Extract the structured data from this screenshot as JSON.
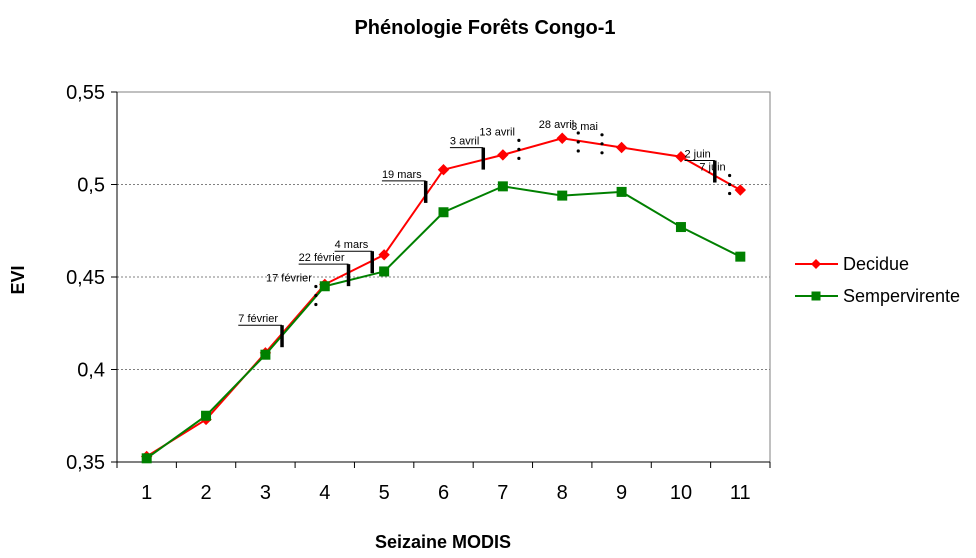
{
  "chart_data": {
    "type": "line",
    "title": "Phénologie Forêts Congo-1",
    "xlabel": "Seizaine MODIS",
    "ylabel": "EVI",
    "x": [
      1,
      2,
      3,
      4,
      5,
      6,
      7,
      8,
      9,
      10,
      11
    ],
    "ylim": [
      0.35,
      0.55
    ],
    "yticks": [
      "0,35",
      "0,4",
      "0,45",
      "0,5",
      "0,55"
    ],
    "ytick_values": [
      0.35,
      0.4,
      0.45,
      0.5,
      0.55
    ],
    "grid": "horizontal dotted",
    "legend_position": "right",
    "series": [
      {
        "name": "Decidue",
        "color": "#ff0000",
        "marker": "diamond",
        "values": [
          0.353,
          0.373,
          0.409,
          0.446,
          0.462,
          0.508,
          0.516,
          0.525,
          0.52,
          0.515,
          0.497
        ]
      },
      {
        "name": "Sempervirente",
        "color": "#008000",
        "marker": "square",
        "values": [
          0.352,
          0.375,
          0.408,
          0.445,
          0.453,
          0.485,
          0.499,
          0.494,
          0.496,
          0.477,
          0.461
        ]
      }
    ],
    "annotations": [
      {
        "label": "7 février",
        "x": 3.28,
        "y": 0.418,
        "style": "bar"
      },
      {
        "label": "17 février",
        "x": 3.85,
        "y": 0.44,
        "style": "dots"
      },
      {
        "label": "22 février",
        "x": 4.4,
        "y": 0.451,
        "style": "bar"
      },
      {
        "label": "4 mars",
        "x": 4.8,
        "y": 0.458,
        "style": "bar"
      },
      {
        "label": "19 mars",
        "x": 5.7,
        "y": 0.496,
        "style": "bar"
      },
      {
        "label": "3 avril",
        "x": 6.67,
        "y": 0.514,
        "style": "bar"
      },
      {
        "label": "13 avril",
        "x": 7.27,
        "y": 0.519,
        "style": "dots"
      },
      {
        "label": "28 avril",
        "x": 8.27,
        "y": 0.523,
        "style": "dots"
      },
      {
        "label": "3 mai",
        "x": 8.67,
        "y": 0.522,
        "style": "dots"
      },
      {
        "label": "2 juin",
        "x": 10.57,
        "y": 0.507,
        "style": "bar"
      },
      {
        "label": "7 juin",
        "x": 10.82,
        "y": 0.5,
        "style": "dots"
      }
    ]
  }
}
